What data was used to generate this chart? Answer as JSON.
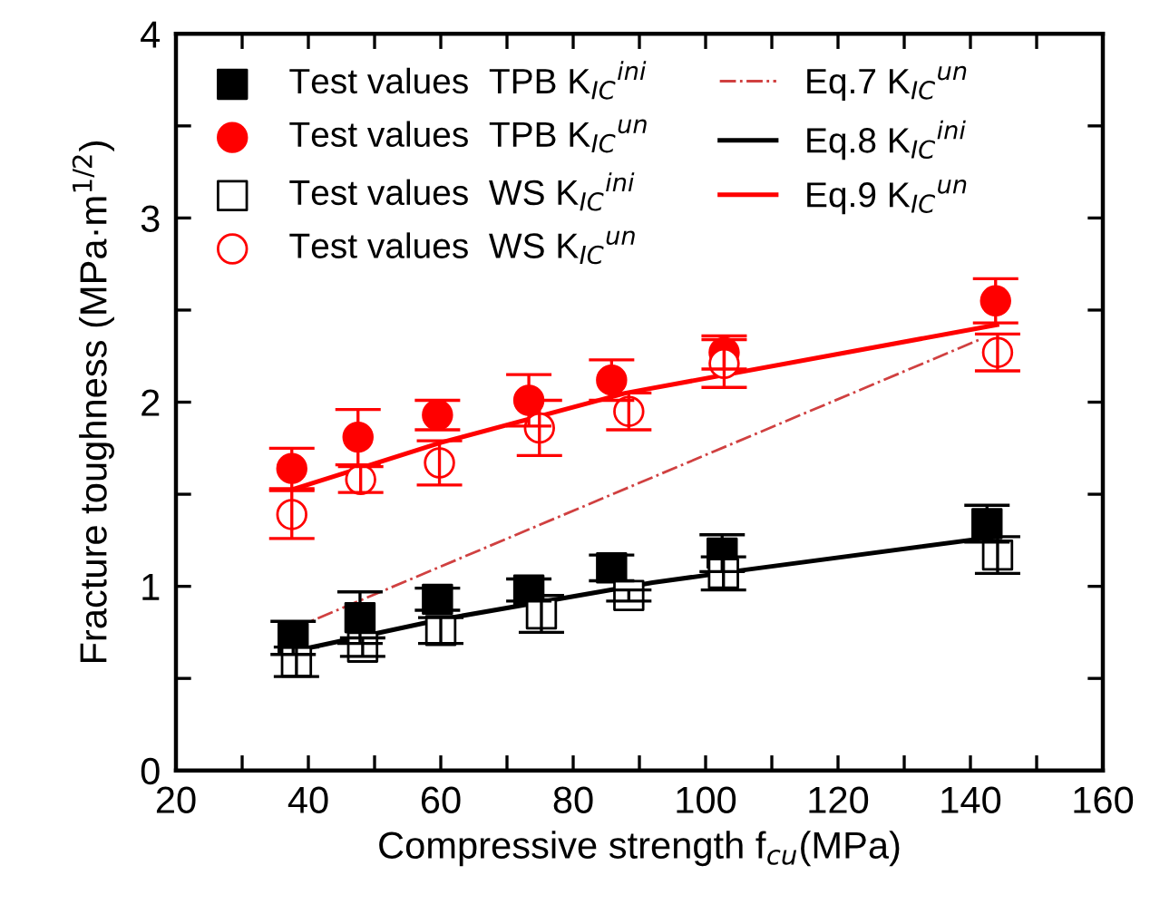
{
  "chart_data": {
    "type": "scatter",
    "xlabel": "Compressive strength f$_{cu}$(MPa)",
    "ylabel": "Fracture toughness (MPa·m$^{1/2}$)",
    "xlim": [
      20,
      160
    ],
    "ylim": [
      0,
      4
    ],
    "xticks": [
      20,
      {
        "value": 30,
        "label": null
      },
      40,
      {
        "value": 50,
        "label": null
      },
      60,
      {
        "value": 70,
        "label": null
      },
      80,
      {
        "value": 90,
        "label": null
      },
      100,
      {
        "value": 110,
        "label": null
      },
      120,
      {
        "value": 130,
        "label": null
      },
      140,
      {
        "value": 150,
        "label": null
      },
      160
    ],
    "yticks": [
      0,
      {
        "value": 0.5,
        "label": null
      },
      1,
      {
        "value": 1.5,
        "label": null
      },
      2,
      {
        "value": 2.5,
        "label": null
      },
      3,
      {
        "value": 3.5,
        "label": null
      },
      4
    ],
    "grid": false,
    "legend": "top left",
    "series": [
      {
        "name": "Test values  TPB K$_{IC}$$^{ini}$",
        "marker": "square",
        "color": "#000000",
        "x": [
          37.7,
          47.8,
          59.5,
          73.3,
          85.8,
          102.5,
          142.5
        ],
        "values": [
          0.72,
          0.83,
          0.93,
          0.98,
          1.1,
          1.18,
          1.34
        ],
        "errors": [
          0.09,
          0.14,
          0.06,
          0.06,
          0.07,
          0.1,
          0.1
        ]
      },
      {
        "name": "Test values  TPB K$_{IC}$$^{un}$",
        "marker": "circle",
        "color": "#ff0000",
        "x": [
          37.5,
          47.5,
          59.5,
          73.3,
          85.8,
          102.8,
          143.8
        ],
        "values": [
          1.64,
          1.81,
          1.93,
          2.01,
          2.12,
          2.27,
          2.55
        ],
        "errors": [
          0.11,
          0.15,
          0.08,
          0.14,
          0.11,
          0.09,
          0.12
        ]
      },
      {
        "name": "Test values  WS K$_{IC}$$^{ini}$",
        "marker": "square",
        "color": "#000000",
        "colors": [
          "#ffffff",
          "#ffffff",
          "#ffffff",
          "#ffffff",
          "#ffffff",
          "#ffffff",
          "#ffffff"
        ],
        "x": [
          38.2,
          48.2,
          60.0,
          75.2,
          88.4,
          102.7,
          144.1
        ],
        "values": [
          0.59,
          0.67,
          0.76,
          0.85,
          0.95,
          1.07,
          1.17
        ],
        "errors": [
          0.08,
          0.05,
          0.07,
          0.1,
          0.03,
          0.09,
          0.1
        ]
      },
      {
        "name": "Test values  WS K$_{IC}$$^{un}$",
        "marker": "circle",
        "color": "#ff0000",
        "colors": [
          "#ffffff",
          "#ffffff",
          "#ffffff",
          "#ffffff",
          "#ffffff",
          "#ffffff",
          "#ffffff"
        ],
        "x": [
          37.5,
          47.9,
          59.8,
          74.9,
          88.4,
          102.8,
          144.1
        ],
        "values": [
          1.39,
          1.58,
          1.67,
          1.86,
          1.95,
          2.21,
          2.27
        ],
        "errors": [
          0.13,
          0.07,
          0.12,
          0.15,
          0.1,
          0.13,
          0.1
        ]
      },
      {
        "name": "Eq.7 K$_{IC}$$^{un}$",
        "type": "line",
        "line_style": "dashdot",
        "color": "#d04040",
        "x": [
          37.7,
          141.4
        ],
        "values": [
          0.77,
          2.34
        ]
      },
      {
        "name": "Eq.8 K$_{IC}$$^{ini}$",
        "type": "line",
        "line_style": "solid",
        "color": "#000000",
        "x": [
          38,
          60,
          92,
          104,
          144
        ],
        "values": [
          0.65,
          0.82,
          1.02,
          1.08,
          1.27
        ]
      },
      {
        "name": "Eq.9 K$_{IC}$$^{un}$",
        "type": "line",
        "line_style": "solid",
        "color": "#ff0000",
        "x": [
          38,
          60,
          88,
          144
        ],
        "values": [
          1.53,
          1.78,
          2.05,
          2.42
        ]
      }
    ]
  }
}
